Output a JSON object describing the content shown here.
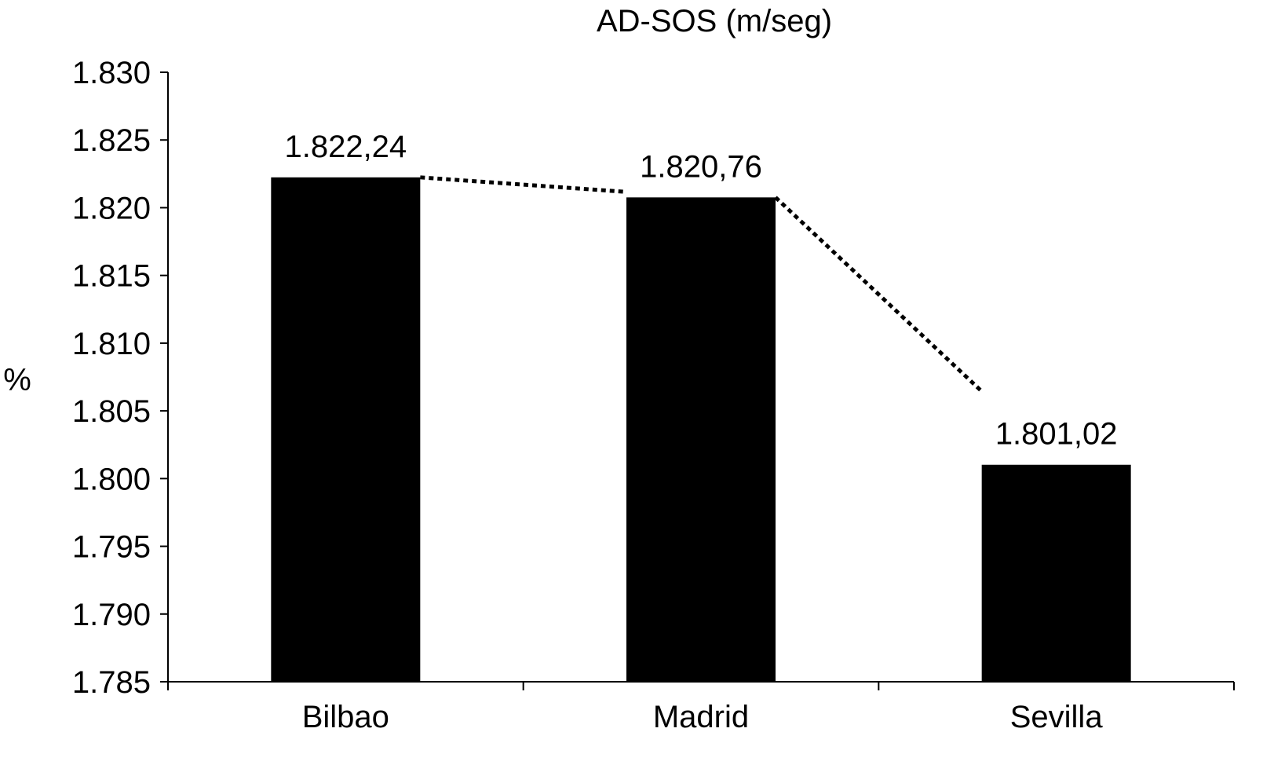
{
  "chart_data": {
    "type": "bar",
    "title": "AD-SOS (m/seg)",
    "xlabel": "",
    "ylabel": "%",
    "categories": [
      "Bilbao",
      "Madrid",
      "Sevilla"
    ],
    "values": [
      1822.24,
      1820.76,
      1801.02
    ],
    "data_labels": [
      "1.822,24",
      "1.820,76",
      "1.801,02"
    ],
    "ylim": [
      1785,
      1830
    ],
    "yticks": [
      1785,
      1790,
      1795,
      1800,
      1805,
      1810,
      1815,
      1820,
      1825,
      1830
    ],
    "ytick_labels": [
      "1.785",
      "1.790",
      "1.795",
      "1.800",
      "1.805",
      "1.810",
      "1.815",
      "1.820",
      "1.825",
      "1.830"
    ],
    "trendline": "dotted",
    "grid": false,
    "legend": "none",
    "colors": {
      "bar": "#000000",
      "axis": "#000000",
      "trend": "#000000"
    }
  }
}
